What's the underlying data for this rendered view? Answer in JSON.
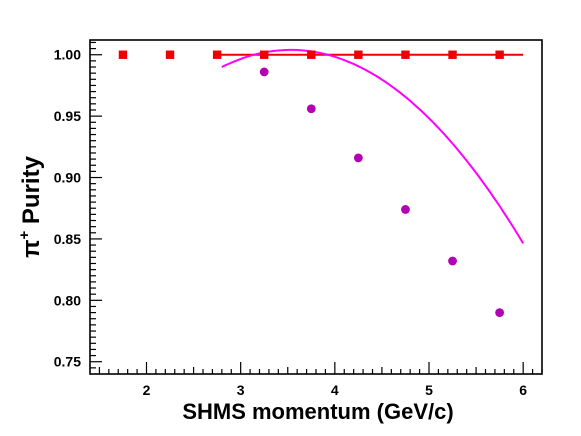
{
  "chart_data": {
    "type": "scatter",
    "xlabel": "SHMS momentum (GeV/c)",
    "ylabel": {
      "prefix": "π",
      "superscript": "+",
      "suffix": " Purity"
    },
    "xlim": [
      1.4,
      6.2
    ],
    "ylim": [
      0.74,
      1.012
    ],
    "x_ticks": [
      2,
      3,
      4,
      5,
      6
    ],
    "y_ticks": [
      0.75,
      0.8,
      0.85,
      0.9,
      0.95,
      1.0
    ],
    "y_tick_labels": [
      "0.75",
      "0.80",
      "0.85",
      "0.90",
      "0.95",
      "1.00"
    ],
    "grid": false,
    "legend": "none",
    "series": [
      {
        "marker": "square",
        "color": "#ee0000",
        "x": [
          1.75,
          2.25,
          2.75,
          3.25,
          3.75,
          4.25,
          4.75,
          5.25,
          5.75
        ],
        "y": [
          1.0,
          1.0,
          1.0,
          1.0,
          1.0,
          1.0,
          1.0,
          1.0,
          1.0
        ]
      },
      {
        "marker": "circle",
        "color": "#b400b4",
        "x": [
          3.25,
          3.75,
          4.25,
          4.75,
          5.25,
          5.75
        ],
        "y": [
          0.986,
          0.956,
          0.916,
          0.874,
          0.832,
          0.79
        ]
      }
    ],
    "fit_lines": [
      {
        "color": "#ee0000",
        "x_range": [
          2.75,
          6.0
        ],
        "coefficients": [
          1.0
        ]
      },
      {
        "color": "#ff00ff",
        "x_range": [
          2.8,
          6.0
        ],
        "coefficients": [
          0.99,
          0.038,
          -0.0259
        ]
      }
    ]
  }
}
